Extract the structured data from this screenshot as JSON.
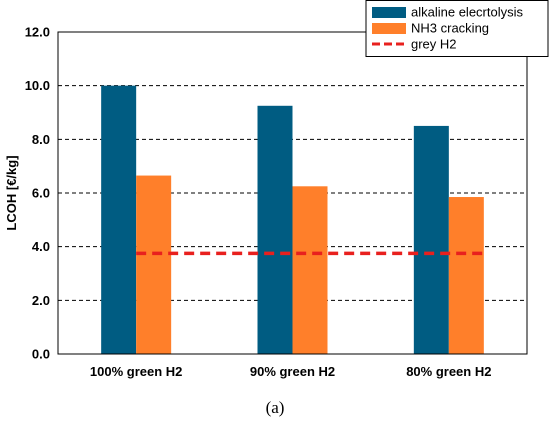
{
  "chart_data": {
    "type": "bar",
    "categories": [
      "100% green H2",
      "90% green H2",
      "80% green H2"
    ],
    "series": [
      {
        "name": "alkaline elecrtolysis",
        "values": [
          10.0,
          9.25,
          8.5
        ],
        "color": "#005C82"
      },
      {
        "name": "NH3 cracking",
        "values": [
          6.65,
          6.25,
          5.85
        ],
        "color": "#FF7F2A"
      }
    ],
    "reference_line": {
      "name": "grey H2",
      "value": 3.75,
      "color": "#E8201E",
      "style": "dashed"
    },
    "title": "",
    "xlabel": "",
    "ylabel": "LCOH [€/kg]",
    "ylim": [
      0,
      12
    ],
    "yticks": [
      "0.0",
      "2.0",
      "4.0",
      "6.0",
      "8.0",
      "10.0",
      "12.0"
    ],
    "grid": "horizontal-dashed",
    "legend_position": "top-right",
    "caption": "(a)"
  }
}
